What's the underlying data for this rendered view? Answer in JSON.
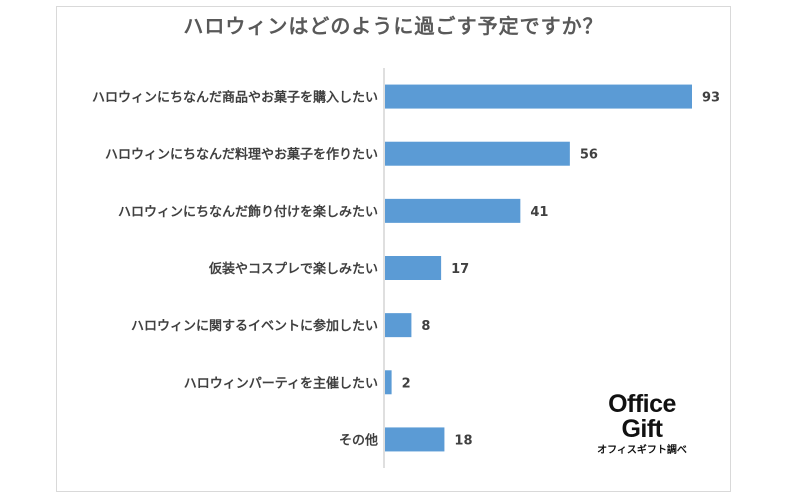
{
  "chart_data": {
    "type": "bar",
    "orientation": "horizontal",
    "title": "ハロウィンはどのように過ごす予定ですか？",
    "categories": [
      "ハロウィンにちなんだ商品やお菓子を購入したい",
      "ハロウィンにちなんだ料理やお菓子を作りたい",
      "ハロウィンにちなんだ飾り付けを楽しみたい",
      "仮装やコスプレで楽しみたい",
      "ハロウィンに関するイベントに参加したい",
      "ハロウィンパーティを主催したい",
      "その他"
    ],
    "values": [
      93,
      56,
      41,
      17,
      8,
      2,
      18
    ],
    "xlim": [
      0,
      93
    ],
    "grid": false,
    "bar_color": "#5b9bd5"
  },
  "logo": {
    "line1": "Office",
    "line2": "Gift",
    "caption": "オフィスギフト調べ"
  }
}
